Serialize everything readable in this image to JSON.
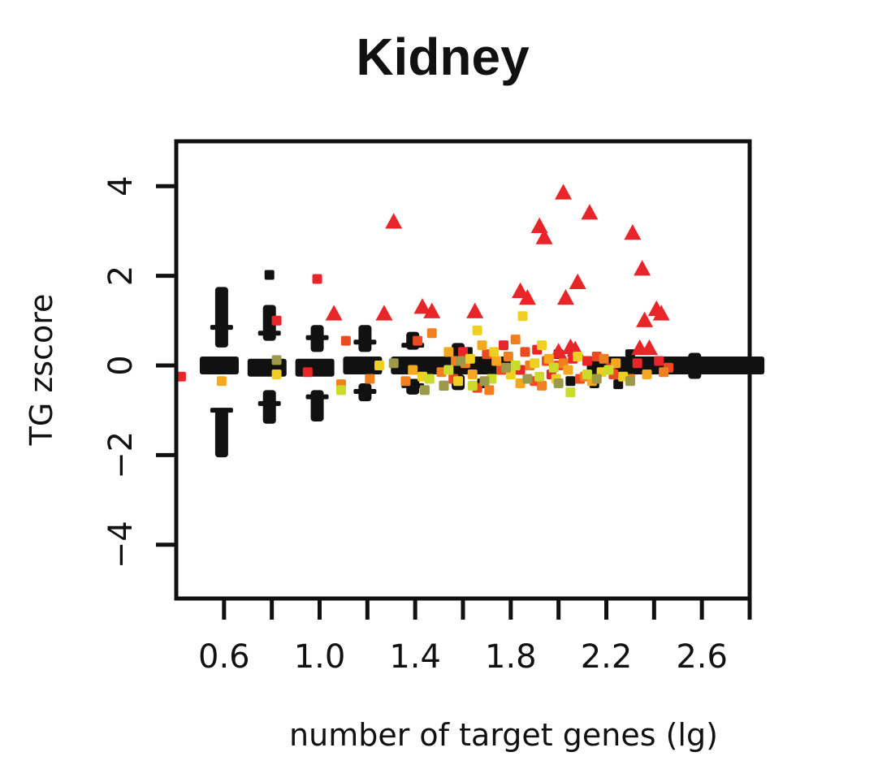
{
  "chart_data": {
    "type": "scatter",
    "title": "Kidney",
    "xlabel": "number of target genes (lg)",
    "ylabel": "TG zscore",
    "xlim": [
      0.4,
      2.8
    ],
    "ylim": [
      -5.2,
      5.0
    ],
    "x_ticks": [
      0.6,
      0.8,
      1.0,
      1.2,
      1.4,
      1.6,
      1.8,
      2.0,
      2.2,
      2.4,
      2.6,
      2.8
    ],
    "x_tick_labels": [
      "0.6",
      "",
      "1.0",
      "",
      "1.4",
      "",
      "1.8",
      "",
      "2.2",
      "",
      "2.6",
      ""
    ],
    "y_ticks": [
      -4,
      -2,
      0,
      2,
      4
    ],
    "y_tick_labels": [
      "−4",
      "−2",
      "0",
      "2",
      "4"
    ],
    "grid": false,
    "legend": "none",
    "colors": {
      "black": "#111111",
      "red": "#e8262a",
      "red_orange": "#ec4a22",
      "orange": "#f07f1f",
      "amber": "#f5a81e",
      "yellow": "#eecf22",
      "yellow_green": "#c9dc2c",
      "olive": "#9c9a4a"
    },
    "series": [
      {
        "marker": "bar",
        "color": "black",
        "points": [
          {
            "x": 0.58,
            "y": 0.0
          },
          {
            "x": 0.78,
            "y": -0.05
          },
          {
            "x": 0.98,
            "y": -0.05
          },
          {
            "x": 1.18,
            "y": 0.0
          },
          {
            "x": 1.38,
            "y": 0.0
          },
          {
            "x": 1.52,
            "y": 0.0
          },
          {
            "x": 1.62,
            "y": 0.0
          },
          {
            "x": 1.72,
            "y": 0.0
          },
          {
            "x": 2.2,
            "y": 0.0
          },
          {
            "x": 2.35,
            "y": 0.0
          },
          {
            "x": 2.5,
            "y": 0.0
          },
          {
            "x": 2.62,
            "y": 0.0
          },
          {
            "x": 2.72,
            "y": 0.0
          },
          {
            "x": 2.78,
            "y": 0.0
          }
        ]
      },
      {
        "marker": "column",
        "color": "black",
        "points": [
          {
            "x": 0.59,
            "y": 1.75,
            "y2": 0.4
          },
          {
            "x": 0.59,
            "y": -0.95,
            "y2": -2.05
          },
          {
            "x": 0.79,
            "y": 1.35,
            "y2": 0.55
          },
          {
            "x": 0.79,
            "y": -0.55,
            "y2": -1.3
          },
          {
            "x": 0.99,
            "y": 0.9,
            "y2": 0.3
          },
          {
            "x": 0.99,
            "y": -0.55,
            "y2": -1.25
          },
          {
            "x": 1.19,
            "y": 0.9,
            "y2": 0.3
          },
          {
            "x": 1.19,
            "y": -0.4,
            "y2": -0.8
          },
          {
            "x": 1.39,
            "y": 0.75,
            "y2": 0.35
          },
          {
            "x": 1.39,
            "y": -0.3,
            "y2": -0.65
          },
          {
            "x": 1.58,
            "y": 0.5,
            "y2": 0.2
          },
          {
            "x": 1.58,
            "y": -0.2,
            "y2": -0.55
          },
          {
            "x": 2.57,
            "y": 0.28,
            "y2": -0.3
          }
        ]
      },
      {
        "marker": "dash",
        "color": "black",
        "points": [
          {
            "x": 0.59,
            "y": 0.85
          },
          {
            "x": 0.59,
            "y": -1.0
          },
          {
            "x": 0.79,
            "y": 0.72
          },
          {
            "x": 0.79,
            "y": -0.85
          },
          {
            "x": 0.99,
            "y": 0.62
          },
          {
            "x": 0.99,
            "y": -0.7
          },
          {
            "x": 1.19,
            "y": 0.52
          },
          {
            "x": 1.19,
            "y": -0.58
          },
          {
            "x": 1.39,
            "y": 0.45
          },
          {
            "x": 1.39,
            "y": -0.45
          }
        ]
      },
      {
        "marker": "square",
        "color": "black",
        "points": [
          {
            "x": 0.79,
            "y": 2.02
          },
          {
            "x": 1.52,
            "y": -0.45
          },
          {
            "x": 1.62,
            "y": 0.3
          },
          {
            "x": 1.68,
            "y": -0.4
          },
          {
            "x": 2.0,
            "y": 0.25
          },
          {
            "x": 2.05,
            "y": -0.35
          },
          {
            "x": 2.15,
            "y": -0.4
          },
          {
            "x": 2.25,
            "y": -0.42
          },
          {
            "x": 2.3,
            "y": 0.25
          }
        ]
      },
      {
        "marker": "triangle",
        "color": "red",
        "points": [
          {
            "x": 1.31,
            "y": 3.2
          },
          {
            "x": 1.06,
            "y": 1.15
          },
          {
            "x": 1.27,
            "y": 1.15
          },
          {
            "x": 1.43,
            "y": 1.3
          },
          {
            "x": 1.47,
            "y": 1.2
          },
          {
            "x": 1.65,
            "y": 1.2
          },
          {
            "x": 1.84,
            "y": 1.65
          },
          {
            "x": 1.87,
            "y": 1.5
          },
          {
            "x": 1.92,
            "y": 3.1
          },
          {
            "x": 1.94,
            "y": 2.85
          },
          {
            "x": 2.02,
            "y": 3.85
          },
          {
            "x": 2.03,
            "y": 1.5
          },
          {
            "x": 2.08,
            "y": 1.85
          },
          {
            "x": 2.13,
            "y": 3.4
          },
          {
            "x": 2.31,
            "y": 2.95
          },
          {
            "x": 2.35,
            "y": 2.15
          },
          {
            "x": 2.36,
            "y": 1.0
          },
          {
            "x": 2.41,
            "y": 1.25
          },
          {
            "x": 2.43,
            "y": 1.15
          },
          {
            "x": 2.05,
            "y": 0.4
          },
          {
            "x": 2.07,
            "y": 0.35
          },
          {
            "x": 2.34,
            "y": 0.38
          },
          {
            "x": 2.38,
            "y": 0.38
          },
          {
            "x": 2.0,
            "y": 0.3
          }
        ]
      },
      {
        "marker": "square",
        "color": "red",
        "points": [
          {
            "x": 0.42,
            "y": -0.25
          },
          {
            "x": 0.82,
            "y": 1.0
          },
          {
            "x": 0.99,
            "y": 1.93
          },
          {
            "x": 0.95,
            "y": -0.15
          },
          {
            "x": 1.77,
            "y": 0.45
          },
          {
            "x": 1.84,
            "y": -0.1
          },
          {
            "x": 1.91,
            "y": 0.35
          },
          {
            "x": 2.12,
            "y": 0.1
          },
          {
            "x": 2.22,
            "y": -0.05
          },
          {
            "x": 2.42,
            "y": 0.1
          },
          {
            "x": 2.33,
            "y": 0.05
          },
          {
            "x": 1.6,
            "y": 0.3
          },
          {
            "x": 1.97,
            "y": -0.2
          },
          {
            "x": 2.06,
            "y": 0.15
          }
        ]
      },
      {
        "marker": "square",
        "color": "red_orange",
        "points": [
          {
            "x": 1.11,
            "y": 0.55
          },
          {
            "x": 1.41,
            "y": 0.55
          },
          {
            "x": 1.56,
            "y": -0.3
          },
          {
            "x": 1.66,
            "y": -0.5
          },
          {
            "x": 1.76,
            "y": -0.1
          },
          {
            "x": 1.86,
            "y": 0.3
          },
          {
            "x": 1.9,
            "y": -0.35
          },
          {
            "x": 2.0,
            "y": 0.0
          },
          {
            "x": 2.09,
            "y": -0.3
          },
          {
            "x": 2.16,
            "y": 0.2
          },
          {
            "x": 2.23,
            "y": -0.2
          },
          {
            "x": 2.46,
            "y": -0.05
          },
          {
            "x": 1.7,
            "y": 0.25
          },
          {
            "x": 1.95,
            "y": 0.1
          }
        ]
      },
      {
        "marker": "square",
        "color": "orange",
        "points": [
          {
            "x": 1.09,
            "y": -0.42
          },
          {
            "x": 1.21,
            "y": -0.3
          },
          {
            "x": 1.36,
            "y": -0.35
          },
          {
            "x": 1.47,
            "y": 0.72
          },
          {
            "x": 1.51,
            "y": -0.15
          },
          {
            "x": 1.61,
            "y": 0.05
          },
          {
            "x": 1.71,
            "y": -0.55
          },
          {
            "x": 1.79,
            "y": 0.2
          },
          {
            "x": 1.82,
            "y": 0.58
          },
          {
            "x": 1.93,
            "y": -0.45
          },
          {
            "x": 2.02,
            "y": 0.05
          },
          {
            "x": 2.11,
            "y": -0.25
          },
          {
            "x": 2.19,
            "y": 0.15
          },
          {
            "x": 2.3,
            "y": -0.3
          },
          {
            "x": 2.44,
            "y": -0.15
          },
          {
            "x": 1.57,
            "y": 0.1
          },
          {
            "x": 1.88,
            "y": 0.0
          }
        ]
      },
      {
        "marker": "square",
        "color": "amber",
        "points": [
          {
            "x": 0.59,
            "y": -0.35
          },
          {
            "x": 1.39,
            "y": -0.1
          },
          {
            "x": 1.54,
            "y": 0.3
          },
          {
            "x": 1.64,
            "y": -0.2
          },
          {
            "x": 1.74,
            "y": 0.1
          },
          {
            "x": 1.84,
            "y": -0.4
          },
          {
            "x": 1.96,
            "y": 0.15
          },
          {
            "x": 2.04,
            "y": -0.1
          },
          {
            "x": 2.14,
            "y": -0.35
          },
          {
            "x": 2.24,
            "y": 0.05
          },
          {
            "x": 2.37,
            "y": -0.2
          },
          {
            "x": 1.68,
            "y": 0.45
          }
        ]
      },
      {
        "marker": "square",
        "color": "yellow",
        "points": [
          {
            "x": 0.82,
            "y": -0.2
          },
          {
            "x": 1.25,
            "y": 0.0
          },
          {
            "x": 1.43,
            "y": -0.25
          },
          {
            "x": 1.66,
            "y": 0.78
          },
          {
            "x": 1.85,
            "y": 1.1
          },
          {
            "x": 1.58,
            "y": -0.35
          },
          {
            "x": 1.73,
            "y": 0.3
          },
          {
            "x": 1.8,
            "y": -0.2
          },
          {
            "x": 1.9,
            "y": 0.05
          },
          {
            "x": 1.99,
            "y": -0.3
          },
          {
            "x": 2.08,
            "y": 0.2
          },
          {
            "x": 2.18,
            "y": -0.15
          },
          {
            "x": 2.27,
            "y": -0.25
          },
          {
            "x": 1.63,
            "y": 0.15
          },
          {
            "x": 1.93,
            "y": 0.45
          }
        ]
      },
      {
        "marker": "square",
        "color": "yellow_green",
        "points": [
          {
            "x": 1.09,
            "y": -0.55
          },
          {
            "x": 1.46,
            "y": -0.3
          },
          {
            "x": 1.54,
            "y": -0.1
          },
          {
            "x": 1.72,
            "y": -0.3
          },
          {
            "x": 1.82,
            "y": 0.0
          },
          {
            "x": 1.92,
            "y": -0.25
          },
          {
            "x": 2.05,
            "y": -0.6
          },
          {
            "x": 2.12,
            "y": -0.2
          },
          {
            "x": 2.21,
            "y": -0.1
          },
          {
            "x": 1.64,
            "y": -0.45
          },
          {
            "x": 1.98,
            "y": -0.05
          }
        ]
      },
      {
        "marker": "square",
        "color": "olive",
        "points": [
          {
            "x": 0.82,
            "y": 0.12
          },
          {
            "x": 1.31,
            "y": 0.05
          },
          {
            "x": 1.44,
            "y": -0.55
          },
          {
            "x": 1.52,
            "y": -0.45
          },
          {
            "x": 1.59,
            "y": 0.1
          },
          {
            "x": 1.69,
            "y": -0.35
          },
          {
            "x": 1.87,
            "y": -0.3
          },
          {
            "x": 2.0,
            "y": -0.4
          },
          {
            "x": 2.16,
            "y": -0.3
          },
          {
            "x": 2.3,
            "y": -0.35
          },
          {
            "x": 1.78,
            "y": -0.05
          }
        ]
      }
    ]
  }
}
